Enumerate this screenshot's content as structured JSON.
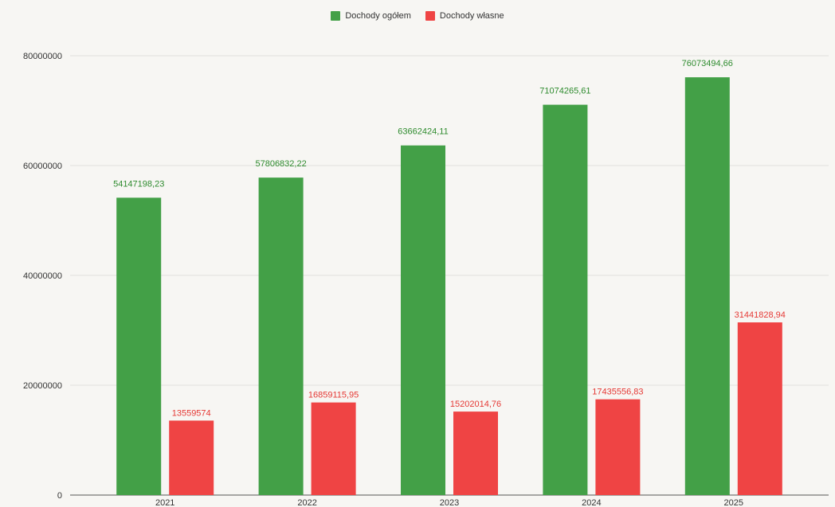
{
  "chart_data": {
    "type": "bar",
    "categories": [
      "2021",
      "2022",
      "2023",
      "2024",
      "2025"
    ],
    "series": [
      {
        "name": "Dochody ogółem",
        "color": "#43a047",
        "values": [
          54147198.23,
          57806832.22,
          63662424.11,
          71074265.61,
          76073494.66
        ],
        "labels": [
          "54147198,23",
          "57806832,22",
          "63662424,11",
          "71074265,61",
          "76073494,66"
        ]
      },
      {
        "name": "Dochody własne",
        "color": "#ef4444",
        "values": [
          13559574,
          16859115.95,
          15202014.76,
          17435556.83,
          31441828.94
        ],
        "labels": [
          "13559574",
          "16859115,95",
          "15202014,76",
          "17435556,83",
          "31441828,94"
        ]
      }
    ],
    "y_ticks": [
      0,
      20000000,
      40000000,
      60000000,
      80000000
    ],
    "y_tick_labels": [
      "0",
      "20000000",
      "40000000",
      "60000000",
      "80000000"
    ],
    "ylim": [
      0,
      80000000
    ],
    "grid": true,
    "legend_position": "top-center"
  }
}
